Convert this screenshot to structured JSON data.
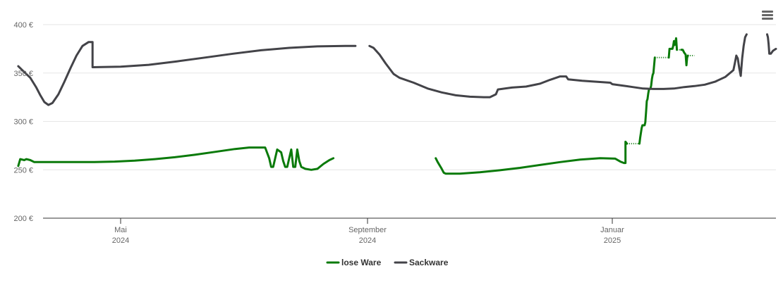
{
  "chart_data": {
    "type": "line",
    "ylim": [
      200,
      400
    ],
    "y_ticks": [
      {
        "value": 200,
        "label": "200 €"
      },
      {
        "value": 250,
        "label": "250 €"
      },
      {
        "value": 300,
        "label": "300 €"
      },
      {
        "value": 350,
        "label": "350 €"
      },
      {
        "value": 400,
        "label": "400 €"
      }
    ],
    "xlim": [
      "2024-03-11",
      "2025-03-12"
    ],
    "x_ticks": [
      {
        "date": "2024-05-01",
        "label": "Mai",
        "sublabel": "2024"
      },
      {
        "date": "2024-09-01",
        "label": "September",
        "sublabel": "2024"
      },
      {
        "date": "2025-01-01",
        "label": "Januar",
        "sublabel": "2025"
      }
    ],
    "grid": true,
    "legend_position": "bottom-center",
    "series": [
      {
        "name": "lose Ware",
        "color": "#0a7a0a",
        "segments": [
          {
            "style": "solid",
            "points": [
              [
                "2024-03-11",
                254
              ],
              [
                "2024-03-12",
                261
              ],
              [
                "2024-03-14",
                260
              ],
              [
                "2024-03-15",
                261
              ],
              [
                "2024-03-17",
                260
              ],
              [
                "2024-03-19",
                258
              ],
              [
                "2024-04-08",
                258
              ],
              [
                "2024-04-18",
                258
              ],
              [
                "2024-04-28",
                258.5
              ],
              [
                "2024-05-08",
                259.5
              ],
              [
                "2024-05-18",
                261
              ],
              [
                "2024-05-28",
                263
              ],
              [
                "2024-06-07",
                265.5
              ],
              [
                "2024-06-17",
                268.5
              ],
              [
                "2024-06-27",
                271.5
              ],
              [
                "2024-07-04",
                273
              ],
              [
                "2024-07-12",
                273
              ],
              [
                "2024-07-14",
                262
              ],
              [
                "2024-07-15",
                253
              ],
              [
                "2024-07-16",
                253
              ],
              [
                "2024-07-17",
                262
              ],
              [
                "2024-07-18",
                271
              ],
              [
                "2024-07-20",
                268
              ],
              [
                "2024-07-21",
                259
              ],
              [
                "2024-07-22",
                253
              ],
              [
                "2024-07-23",
                253
              ],
              [
                "2024-07-24",
                262
              ],
              [
                "2024-07-25",
                271
              ],
              [
                "2024-07-26",
                253
              ],
              [
                "2024-07-27",
                253
              ],
              [
                "2024-07-28",
                271
              ],
              [
                "2024-07-29",
                259
              ],
              [
                "2024-07-30",
                253
              ],
              [
                "2024-08-01",
                251
              ],
              [
                "2024-08-04",
                250
              ],
              [
                "2024-08-07",
                251
              ],
              [
                "2024-08-10",
                256
              ],
              [
                "2024-08-13",
                260
              ],
              [
                "2024-08-15",
                262
              ]
            ]
          },
          {
            "style": "solid",
            "points": [
              [
                "2024-10-05",
                262
              ],
              [
                "2024-10-06",
                258
              ],
              [
                "2024-10-08",
                251
              ],
              [
                "2024-10-09",
                247
              ],
              [
                "2024-10-10",
                246
              ],
              [
                "2024-10-17",
                246
              ],
              [
                "2024-10-27",
                247.5
              ],
              [
                "2024-11-06",
                249.5
              ],
              [
                "2024-11-16",
                252
              ],
              [
                "2024-11-26",
                255
              ],
              [
                "2024-12-06",
                258
              ],
              [
                "2024-12-16",
                260.5
              ],
              [
                "2024-12-26",
                262
              ],
              [
                "2025-01-05",
                261.5
              ],
              [
                "2025-01-12",
                258.5
              ],
              [
                "2025-01-17",
                257
              ],
              [
                "2025-01-19",
                257
              ],
              [
                "2025-01-19",
                279
              ],
              [
                "2025-01-21",
                277
              ]
            ]
          },
          {
            "style": "dotted",
            "points": [
              [
                "2025-01-21",
                277
              ],
              [
                "2025-02-07",
                277
              ]
            ]
          },
          {
            "style": "solid",
            "points": [
              [
                "2025-02-07",
                277
              ],
              [
                "2025-02-08",
                283
              ],
              [
                "2025-02-10",
                293
              ],
              [
                "2025-02-11",
                296
              ],
              [
                "2025-02-14",
                296
              ],
              [
                "2025-02-15",
                299
              ],
              [
                "2025-02-16",
                310
              ],
              [
                "2025-02-17",
                321
              ],
              [
                "2025-02-18",
                323
              ],
              [
                "2025-02-19",
                329
              ],
              [
                "2025-02-20",
                333
              ],
              [
                "2025-02-22",
                334
              ],
              [
                "2025-02-23",
                337
              ],
              [
                "2025-02-24",
                344
              ],
              [
                "2025-02-25",
                348
              ],
              [
                "2025-02-26",
                350
              ],
              [
                "2025-02-27",
                358
              ],
              [
                "2025-02-28",
                366
              ]
            ]
          },
          {
            "style": "dotted",
            "points": [
              [
                "2025-02-28",
                366
              ],
              [
                "2025-03-19",
                366
              ]
            ]
          },
          {
            "style": "solid",
            "points": [
              [
                "2025-03-19",
                366
              ],
              [
                "2025-03-20",
                375
              ],
              [
                "2025-03-24",
                375
              ],
              [
                "2025-03-25",
                378
              ],
              [
                "2025-03-26",
                383
              ],
              [
                "2025-03-27",
                379
              ],
              [
                "2025-03-28",
                382
              ],
              [
                "2025-03-29",
                386
              ],
              [
                "2025-03-30",
                374
              ]
            ]
          },
          {
            "style": "dotted",
            "points": [
              [
                "2025-03-30",
                374
              ],
              [
                "2025-04-05",
                374
              ]
            ]
          },
          {
            "style": "solid",
            "points": [
              [
                "2025-04-05",
                374
              ],
              [
                "2025-04-07",
                374
              ],
              [
                "2025-04-09",
                371
              ],
              [
                "2025-04-11",
                369
              ],
              [
                "2025-04-12",
                358
              ],
              [
                "2025-04-13",
                366
              ],
              [
                "2025-04-14",
                368
              ]
            ]
          },
          {
            "style": "dotted",
            "points": [
              [
                "2025-04-14",
                368
              ],
              [
                "2025-04-23",
                368
              ]
            ]
          }
        ]
      },
      {
        "name": "Sackware",
        "color": "#434348",
        "segments": [
          {
            "style": "solid",
            "points": [
              [
                "2024-03-11",
                357
              ],
              [
                "2024-03-14",
                351
              ],
              [
                "2024-03-17",
                345
              ],
              [
                "2024-03-20",
                335
              ],
              [
                "2024-03-22",
                327
              ],
              [
                "2024-03-24",
                320
              ],
              [
                "2024-03-26",
                317
              ],
              [
                "2024-03-28",
                319
              ],
              [
                "2024-03-31",
                328
              ],
              [
                "2024-04-03",
                341
              ],
              [
                "2024-04-06",
                355
              ],
              [
                "2024-04-09",
                368
              ],
              [
                "2024-04-12",
                378
              ],
              [
                "2024-04-15",
                382
              ],
              [
                "2024-04-17",
                382
              ],
              [
                "2024-04-17",
                356
              ],
              [
                "2024-05-01",
                356.5
              ],
              [
                "2024-05-15",
                358.5
              ],
              [
                "2024-05-29",
                362
              ],
              [
                "2024-06-12",
                366
              ],
              [
                "2024-06-26",
                370
              ],
              [
                "2024-07-10",
                373.5
              ],
              [
                "2024-07-24",
                376
              ],
              [
                "2024-08-07",
                377.5
              ],
              [
                "2024-08-21",
                378
              ],
              [
                "2024-08-26",
                378
              ]
            ]
          },
          {
            "style": "solid",
            "points": [
              [
                "2024-09-02",
                378
              ],
              [
                "2024-09-04",
                376
              ],
              [
                "2024-09-07",
                369
              ],
              [
                "2024-09-10",
                360
              ],
              [
                "2024-09-14",
                349
              ],
              [
                "2024-09-17",
                345
              ],
              [
                "2024-09-24",
                340
              ],
              [
                "2024-10-01",
                334
              ],
              [
                "2024-10-08",
                330
              ],
              [
                "2024-10-15",
                327
              ],
              [
                "2024-10-22",
                325.5
              ],
              [
                "2024-10-29",
                325
              ],
              [
                "2024-11-01",
                325
              ],
              [
                "2024-11-04",
                328
              ],
              [
                "2024-11-05",
                333
              ],
              [
                "2024-11-12",
                335
              ],
              [
                "2024-11-19",
                336
              ],
              [
                "2024-11-26",
                339
              ],
              [
                "2024-12-01",
                343
              ],
              [
                "2024-12-06",
                346.5
              ],
              [
                "2024-12-09",
                346.5
              ],
              [
                "2024-12-10",
                343.5
              ],
              [
                "2024-12-17",
                342
              ],
              [
                "2024-12-24",
                341
              ],
              [
                "2024-12-31",
                340
              ],
              [
                "2025-01-01",
                338.5
              ],
              [
                "2025-01-15",
                337
              ],
              [
                "2025-01-29",
                335.5
              ],
              [
                "2025-02-12",
                334
              ],
              [
                "2025-02-26",
                333.5
              ],
              [
                "2025-03-12",
                333.5
              ],
              [
                "2025-03-26",
                334
              ],
              [
                "2025-04-09",
                335.5
              ],
              [
                "2025-04-23",
                336.5
              ],
              [
                "2025-05-07",
                338
              ],
              [
                "2025-05-21",
                341
              ],
              [
                "2025-06-04",
                346
              ],
              [
                "2025-06-12",
                351
              ],
              [
                "2025-06-15",
                353
              ],
              [
                "2025-06-17",
                360
              ],
              [
                "2025-06-19",
                368
              ],
              [
                "2025-06-21",
                365
              ],
              [
                "2025-06-23",
                355
              ],
              [
                "2025-06-25",
                347
              ],
              [
                "2025-06-27",
                365
              ],
              [
                "2025-06-29",
                378
              ],
              [
                "2025-07-01",
                387
              ],
              [
                "2025-07-03",
                390
              ]
            ]
          },
          {
            "style": "solid",
            "points": [
              [
                "2025-07-31",
                390
              ],
              [
                "2025-08-01",
                387
              ],
              [
                "2025-08-02",
                380
              ],
              [
                "2025-08-03",
                370
              ],
              [
                "2025-08-05",
                370
              ],
              [
                "2025-08-08",
                373
              ],
              [
                "2025-08-12",
                375
              ]
            ]
          }
        ]
      }
    ]
  },
  "menu": {
    "icon": "hamburger-menu-icon"
  }
}
